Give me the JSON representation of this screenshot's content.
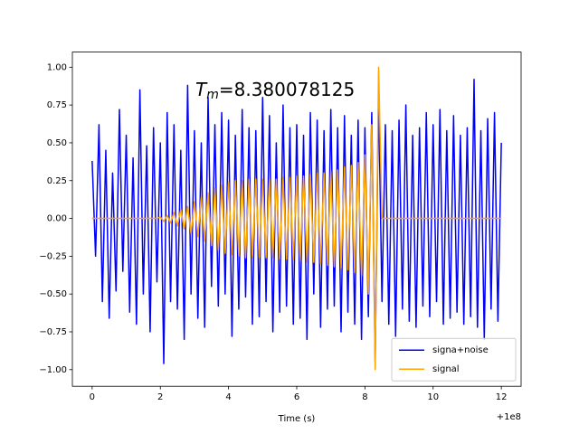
{
  "chart_data": {
    "type": "line",
    "annotation_symbol": "T",
    "annotation_subscript": "m",
    "annotation_text": "=8.380078125",
    "x_label": "Time (s)",
    "x_offset_label": "+1e8",
    "legend": "lower right",
    "x": [
      100000000,
      100000000.1,
      100000000.2,
      100000000.3,
      100000000.4,
      100000000.5,
      100000000.6,
      100000000.7,
      100000000.8,
      100000000.9,
      100000001,
      100000001.1,
      100000001.2,
      100000001.3,
      100000001.4,
      100000001.5,
      100000001.6,
      100000001.7,
      100000001.8,
      100000001.9,
      100000002,
      100000002.1,
      100000002.2,
      100000002.3,
      100000002.4,
      100000002.5,
      100000002.6,
      100000002.7,
      100000002.8,
      100000002.9,
      100000003,
      100000003.1,
      100000003.2,
      100000003.3,
      100000003.4,
      100000003.5,
      100000003.6,
      100000003.7,
      100000003.8,
      100000003.9,
      100000004,
      100000004.1,
      100000004.2,
      100000004.3,
      100000004.4,
      100000004.5,
      100000004.6,
      100000004.7,
      100000004.8,
      100000004.9,
      100000005,
      100000005.1,
      100000005.2,
      100000005.3,
      100000005.4,
      100000005.5,
      100000005.6,
      100000005.7,
      100000005.8,
      100000005.9,
      100000006,
      100000006.1,
      100000006.2,
      100000006.3,
      100000006.4,
      100000006.5,
      100000006.6,
      100000006.7,
      100000006.8,
      100000006.9,
      100000007,
      100000007.1,
      100000007.2,
      100000007.3,
      100000007.4,
      100000007.5,
      100000007.6,
      100000007.7,
      100000007.8,
      100000007.9,
      100000008,
      100000008.1,
      100000008.2,
      100000008.3,
      100000008.4,
      100000008.5,
      100000008.6,
      100000008.7,
      100000008.8,
      100000008.9,
      100000009,
      100000009.1,
      100000009.2,
      100000009.3,
      100000009.4,
      100000009.5,
      100000009.6,
      100000009.7,
      100000009.8,
      100000009.9,
      100000010,
      100000010.1,
      100000010.2,
      100000010.3,
      100000010.4,
      100000010.5,
      100000010.6,
      100000010.7,
      100000010.8,
      100000010.9,
      100000011,
      100000011.1,
      100000011.2,
      100000011.3,
      100000011.4,
      100000011.5,
      100000011.6,
      100000011.7,
      100000011.8,
      100000011.9,
      100000012
    ],
    "series": [
      {
        "name": "signa+noise",
        "color": "#0000ff",
        "values": [
          0.38,
          -0.25,
          0.62,
          -0.55,
          0.45,
          -0.66,
          0.3,
          -0.48,
          0.72,
          -0.35,
          0.55,
          -0.62,
          0.4,
          -0.7,
          0.85,
          -0.5,
          0.48,
          -0.75,
          0.6,
          -0.42,
          0.5,
          -0.96,
          0.7,
          -0.55,
          0.62,
          -0.6,
          0.45,
          -0.8,
          0.88,
          -0.5,
          0.58,
          -0.66,
          0.5,
          -0.72,
          0.8,
          -0.45,
          0.62,
          -0.58,
          0.7,
          -0.5,
          0.65,
          -0.78,
          0.55,
          -0.6,
          0.72,
          -0.52,
          0.6,
          -0.7,
          0.58,
          -0.65,
          0.8,
          -0.55,
          0.68,
          -0.75,
          0.5,
          -0.62,
          0.75,
          -0.58,
          0.6,
          -0.7,
          0.62,
          -0.66,
          0.55,
          -0.8,
          0.7,
          -0.5,
          0.65,
          -0.72,
          0.58,
          -0.6,
          0.72,
          -0.58,
          0.6,
          -0.75,
          0.68,
          -0.62,
          0.55,
          -0.7,
          0.65,
          -0.8,
          0.6,
          -0.65,
          0.7,
          -0.95,
          0.82,
          -0.55,
          0.62,
          -0.7,
          0.58,
          -0.78,
          0.65,
          -0.6,
          0.75,
          -0.68,
          0.55,
          -0.72,
          0.6,
          -0.58,
          0.7,
          -0.65,
          0.62,
          -0.55,
          0.72,
          -0.7,
          0.58,
          -0.66,
          0.68,
          -0.62,
          0.55,
          -0.7,
          0.6,
          -0.65,
          0.92,
          -0.72,
          0.58,
          -0.8,
          0.66,
          -0.6,
          0.7,
          -0.68,
          0.5
        ]
      },
      {
        "name": "signal",
        "color": "#ffa500",
        "values": [
          0,
          0,
          0,
          0,
          0,
          0,
          0,
          0,
          0,
          0,
          0,
          0,
          0,
          0,
          0,
          0,
          0,
          0,
          0,
          0,
          0.01,
          -0.02,
          0.02,
          -0.03,
          0.04,
          -0.05,
          0.06,
          -0.07,
          0.08,
          -0.1,
          0.11,
          -0.12,
          0.14,
          -0.15,
          0.17,
          -0.18,
          0.2,
          -0.21,
          0.22,
          -0.23,
          0.24,
          -0.24,
          0.25,
          -0.25,
          0.25,
          -0.26,
          0.26,
          -0.26,
          0.26,
          -0.26,
          0.26,
          -0.26,
          0.26,
          -0.26,
          0.26,
          -0.27,
          0.27,
          -0.27,
          0.27,
          -0.27,
          0.28,
          -0.28,
          0.28,
          -0.29,
          0.29,
          -0.29,
          0.3,
          -0.3,
          0.3,
          -0.31,
          0.31,
          -0.32,
          0.32,
          -0.33,
          0.34,
          -0.34,
          0.35,
          -0.36,
          0.37,
          -0.38,
          0.42,
          -0.5,
          0.62,
          -1.0,
          1.0,
          0,
          0,
          0,
          0,
          0,
          0,
          0,
          0,
          0,
          0,
          0,
          0,
          0,
          0,
          0,
          0,
          0,
          0,
          0,
          0,
          0,
          0,
          0,
          0,
          0,
          0,
          0,
          0,
          0,
          0,
          0,
          0,
          0,
          0,
          0,
          0
        ]
      }
    ],
    "xlim": [
      99999999.42,
      100000012.58
    ],
    "xticks": [
      {
        "value": 100000000,
        "label": "0"
      },
      {
        "value": 100000002,
        "label": "2"
      },
      {
        "value": 100000004,
        "label": "4"
      },
      {
        "value": 100000006,
        "label": "6"
      },
      {
        "value": 100000008,
        "label": "8"
      },
      {
        "value": 100000010,
        "label": "10"
      },
      {
        "value": 100000012,
        "label": "12"
      }
    ],
    "ylim": [
      -1.11,
      1.1
    ],
    "yticks": [
      {
        "value": -1,
        "label": "−1.00"
      },
      {
        "value": -0.75,
        "label": "−0.75"
      },
      {
        "value": -0.5,
        "label": "−0.50"
      },
      {
        "value": -0.25,
        "label": "−0.25"
      },
      {
        "value": 0,
        "label": "0.00"
      },
      {
        "value": 0.25,
        "label": "0.25"
      },
      {
        "value": 0.5,
        "label": "0.50"
      },
      {
        "value": 0.75,
        "label": "0.75"
      },
      {
        "value": 1,
        "label": "1.00"
      }
    ]
  }
}
